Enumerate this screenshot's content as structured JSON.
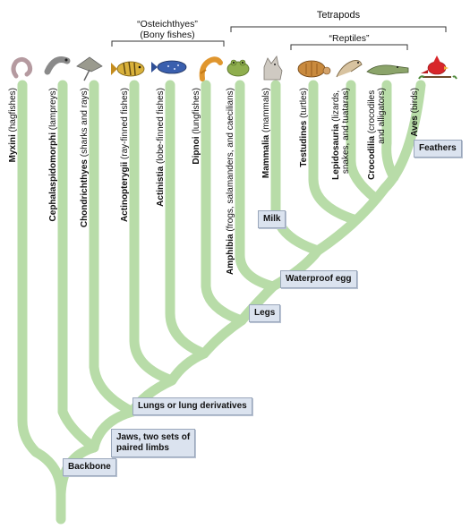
{
  "groups": {
    "tetrapods": "Tetrapods",
    "osteichthyes_line1": "“Osteichthyes”",
    "osteichthyes_line2": "(Bony fishes)",
    "reptiles": "“Reptiles”"
  },
  "taxa": [
    {
      "bold": "Myxini",
      "rest": " (hagfishes)"
    },
    {
      "bold": "Cephalaspidomorphi",
      "rest": " (lampreys)"
    },
    {
      "bold": "Chondrichthyes",
      "rest": " (sharks and rays)"
    },
    {
      "bold": "Actinopterygii",
      "rest": " (ray-finned fishes)"
    },
    {
      "bold": "Actinistia",
      "rest": " (lobe-finned fishes)"
    },
    {
      "bold": "Dipnoi",
      "rest": " (lungfishes)"
    },
    {
      "bold": "Amphibia",
      "rest": " (frogs, salamanders, and caecilians)"
    },
    {
      "bold": "Mammalia",
      "rest": " (mammals)"
    },
    {
      "bold": "Testudines",
      "rest": " (turtles)"
    },
    {
      "bold": "Lepidosauria",
      "rest": " (lizards,",
      "line2": "snakes, and tuataras)"
    },
    {
      "bold": "Crocodilia",
      "rest": " (crocodiles",
      "line2": "and alligators)"
    },
    {
      "bold": "Aves",
      "rest": " (birds)"
    }
  ],
  "traits": {
    "backbone": "Backbone",
    "jaws_line1": "Jaws, two sets of",
    "jaws_line2": "paired limbs",
    "lungs": "Lungs or lung derivatives",
    "legs": "Legs",
    "waterproof_egg": "Waterproof egg",
    "milk": "Milk",
    "feathers": "Feathers"
  },
  "animal_icons": [
    "hagfish-icon",
    "lamprey-icon",
    "ray-icon",
    "perch-icon",
    "coelacanth-icon",
    "lungfish-icon",
    "frog-icon",
    "wolf-icon",
    "turtle-icon",
    "lizard-icon",
    "crocodile-icon",
    "cardinal-bird-icon"
  ],
  "colors": {
    "branch": "#b8dca8",
    "trait_box": "#dbe3ef",
    "trait_border": "#9aa7bb",
    "bracket": "#333333"
  }
}
